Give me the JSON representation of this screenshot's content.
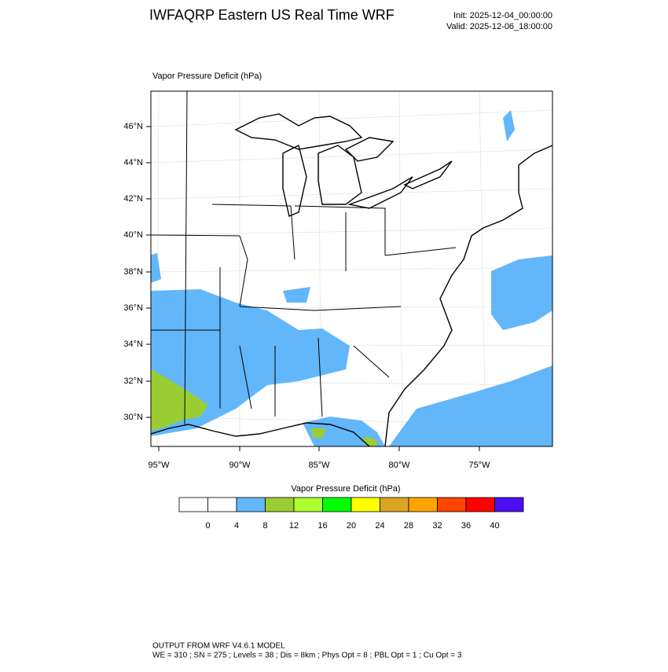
{
  "header": {
    "title": "IWFAQRP Eastern US Real Time WRF",
    "init": "Init: 2025-12-04_00:00:00",
    "valid": "Valid: 2025-12-06_18:00:00"
  },
  "map": {
    "subtitle": "Vapor Pressure Deficit   (hPa)",
    "lat_labels": [
      "46°N",
      "44°N",
      "42°N",
      "40°N",
      "38°N",
      "36°N",
      "34°N",
      "32°N",
      "30°N"
    ],
    "lon_labels": [
      "95°W",
      "90°W",
      "85°W",
      "80°W",
      "75°W"
    ]
  },
  "colorbar": {
    "title": "Vapor Pressure Deficit  (hPa)",
    "colors": [
      "#ffffff",
      "#ffffff",
      "#62b6fa",
      "#9acd32",
      "#adff2f",
      "#00ff00",
      "#ffff00",
      "#daa520",
      "#ffa500",
      "#ff4500",
      "#ff0000",
      "#4b0ef0"
    ],
    "levels": [
      0,
      4,
      8,
      12,
      16,
      20,
      24,
      28,
      32,
      36,
      40
    ]
  },
  "footer": {
    "line1": "OUTPUT FROM WRF V4.6.1 MODEL",
    "line2": "WE = 310 ; SN = 275 ; Levels = 38 ; Dis = 8km ; Phys Opt = 8 ; PBL Opt = 1 ; Cu Opt = 3"
  }
}
